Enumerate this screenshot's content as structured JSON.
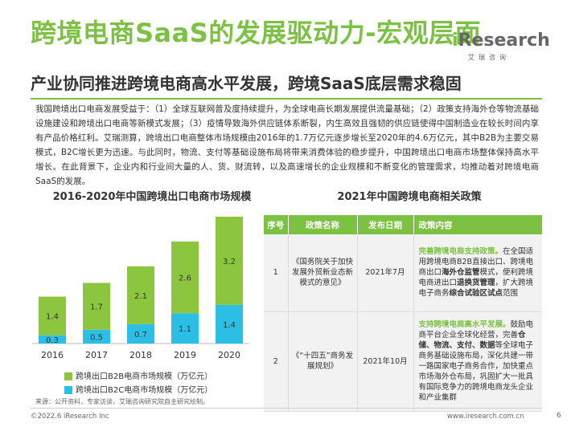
{
  "header": {
    "title": "跨境电商SaaS的发展驱动力-宏观层面",
    "logo_main": "Research",
    "logo_i": "i",
    "logo_sub": "艾瑞咨询",
    "subtitle": "产业协同推进跨境电商高水平发展，跨境SaaS底层需求稳固"
  },
  "intro": "我国跨境出口电商发展受益于：（1）全球互联网普及度持续提升，为全球电商长期发展提供流量基础；（2）政策支持海外仓等物流基础设施建设和跨境出口电商等新模式发展；（3）疫情导致海外供应链体系断裂，内生高效且强韧的供应链使得中国制造业在较长时间内享有产品价格红利。艾瑞测算，跨境出口电商整体市场规模由2016年的1.7万亿元逐步增长至2020年的4.6万亿元，其中B2B为主要交易模式，B2C增长更为迅速。与此同时，物流、支付等基础设施布局将带来消费体验的稳步提升，中国跨境出口电商市场整体保持高水平增长。在此背景下，企业内和行业间大量的人、货、财流转，以及高速增长的企业规模和不断变化的管理需求，均推动着对跨境电商SaaS的发展。",
  "chart_title": "2016-2020年中国跨境出口电商市场规模",
  "chart_data": {
    "type": "bar",
    "stacked": true,
    "categories": [
      "2016",
      "2017",
      "2018",
      "2019",
      "2020"
    ],
    "series": [
      {
        "name": "跨境出口B2C电商市场规模（万亿元）",
        "values": [
          0.3,
          0.5,
          0.7,
          1.1,
          1.4
        ],
        "color": "#2bbfe6"
      },
      {
        "name": "跨境出口B2B电商市场规模（万亿元）",
        "values": [
          1.4,
          1.7,
          2.1,
          2.6,
          3.2
        ],
        "color": "#8cc63f"
      }
    ],
    "legend_order": [
      "跨境出口B2B电商市场规模（万亿元）",
      "跨境出口B2C电商市场规模（万亿元）"
    ],
    "legend_position": "bottom",
    "grid": false
  },
  "table_title": "2021年中国跨境电商相关政策",
  "table": {
    "headers": [
      "序号",
      "政策名称",
      "发布日期",
      "政策内容"
    ],
    "rows": [
      {
        "num": "1",
        "name": "《国务院关于加快发展外贸新业态新模式的意见》",
        "date": "2021年7月",
        "content": [
          {
            "t": "完善跨境电商支持政策。",
            "s": "g"
          },
          {
            "t": "在全国适用跨境电商B2B直接出口、跨境电商出口",
            "s": ""
          },
          {
            "t": "海外仓监管",
            "s": "b"
          },
          {
            "t": "模式，便利跨境电商进出口",
            "s": ""
          },
          {
            "t": "退换货管理",
            "s": "b"
          },
          {
            "t": "，扩大跨境电子商务",
            "s": ""
          },
          {
            "t": "综合试验区试点",
            "s": "b"
          },
          {
            "t": "范围",
            "s": ""
          }
        ]
      },
      {
        "num": "2",
        "name": "《“十四五”商务发展规划》",
        "date": "2021年10月",
        "content": [
          {
            "t": "支持跨境电商高水平发展。",
            "s": "g"
          },
          {
            "t": "鼓励电商平台企业全球化经营，完善",
            "s": ""
          },
          {
            "t": "仓储、物流、支付、数据",
            "s": "b"
          },
          {
            "t": "等全球电子商务基础设施布局，深化共建一带一路国家电子商务合作，加快重点市场海外仓布局，巩固扩大一批具有国际竞争力的跨境电商龙头企业和产业集群",
            "s": ""
          }
        ]
      }
    ]
  },
  "source": "来源：公开资料，专家访谈，艾瑞咨询研究院自主研究绘制。",
  "footer": {
    "copyright": "©2022.6 iResearch Inc",
    "url": "www.iresearch.com.cn",
    "page": "6"
  }
}
